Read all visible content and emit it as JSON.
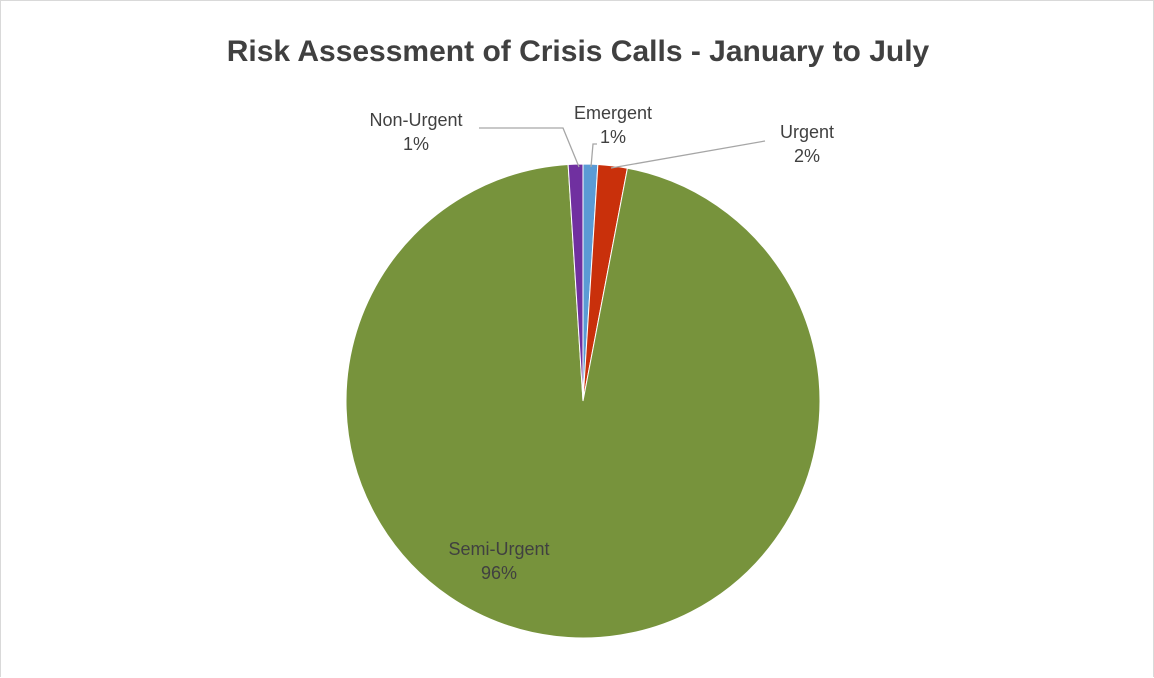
{
  "chart_data": {
    "type": "pie",
    "title": "Risk Assessment of Crisis Calls - January to July",
    "categories": [
      "Emergent",
      "Urgent",
      "Semi-Urgent",
      "Non-Urgent"
    ],
    "values": [
      1,
      2,
      96,
      1
    ],
    "value_labels": [
      "1%",
      "2%",
      "96%",
      "1%"
    ],
    "colors": [
      "#5b9bd5",
      "#c9300b",
      "#77933c",
      "#7030a0"
    ],
    "legend": "none",
    "data_labels": "category and percentage"
  }
}
